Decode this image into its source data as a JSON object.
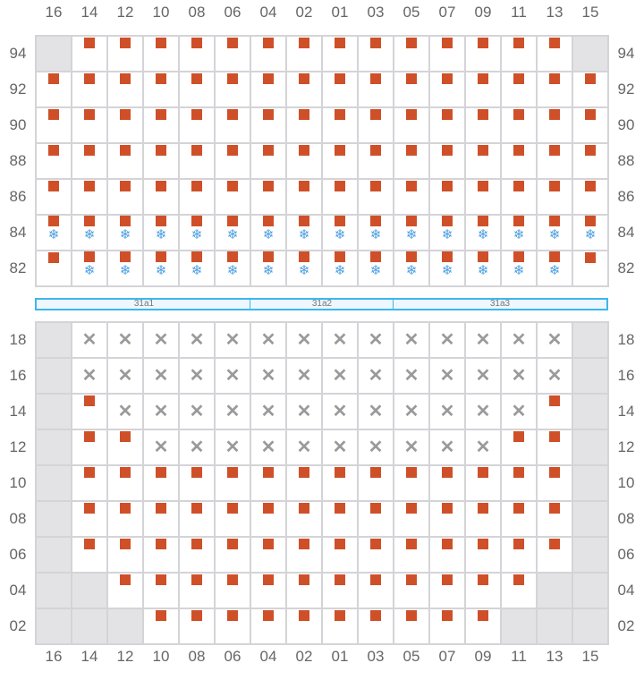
{
  "columns": [
    "16",
    "14",
    "12",
    "10",
    "08",
    "06",
    "04",
    "02",
    "01",
    "03",
    "05",
    "07",
    "09",
    "11",
    "13",
    "15"
  ],
  "legend": {
    "g": "unavailable",
    "s": "seat",
    "b": "seat-refrigerated",
    "x": "blocked",
    "e": "empty"
  },
  "colors": {
    "seat": "#cf5028",
    "snowflake": "#4a9ee0",
    "cross": "#9a9a9a",
    "unavailable": "#e3e3e6",
    "section_border": "#3bb8ee"
  },
  "icons": {
    "seat": "square",
    "refrigerated": "snowflake-icon",
    "blocked": "cross-icon"
  },
  "top_block": [
    {
      "row": "94",
      "cells": "gssssssssssssssg"
    },
    {
      "row": "92",
      "cells": "ssssssssssssssss"
    },
    {
      "row": "90",
      "cells": "ssssssssssssssss"
    },
    {
      "row": "88",
      "cells": "ssssssssssssssss"
    },
    {
      "row": "86",
      "cells": "ssssssssssssssss"
    },
    {
      "row": "84",
      "cells": "bbbbbbbbbbbbbbbb"
    },
    {
      "row": "82",
      "cells": "sbbbbbbbbbbbbbbs"
    }
  ],
  "sections": [
    {
      "label": "31a1",
      "span": 6
    },
    {
      "label": "31a2",
      "span": 4
    },
    {
      "label": "31a3",
      "span": 6
    }
  ],
  "bottom_block": [
    {
      "row": "18",
      "cells": "gxxxxxxxxxxxxxxg"
    },
    {
      "row": "16",
      "cells": "gxxxxxxxxxxxxxxg"
    },
    {
      "row": "14",
      "cells": "gsxxxxxxxxxxxxsg"
    },
    {
      "row": "12",
      "cells": "gssxxxxxxxxxxssg"
    },
    {
      "row": "10",
      "cells": "gssssssssssssssg"
    },
    {
      "row": "08",
      "cells": "gssssssssssssssg"
    },
    {
      "row": "06",
      "cells": "gssssssssssssssg"
    },
    {
      "row": "04",
      "cells": "ggssssssssssssgg"
    },
    {
      "row": "02",
      "cells": "gggssssssssssggg"
    }
  ]
}
